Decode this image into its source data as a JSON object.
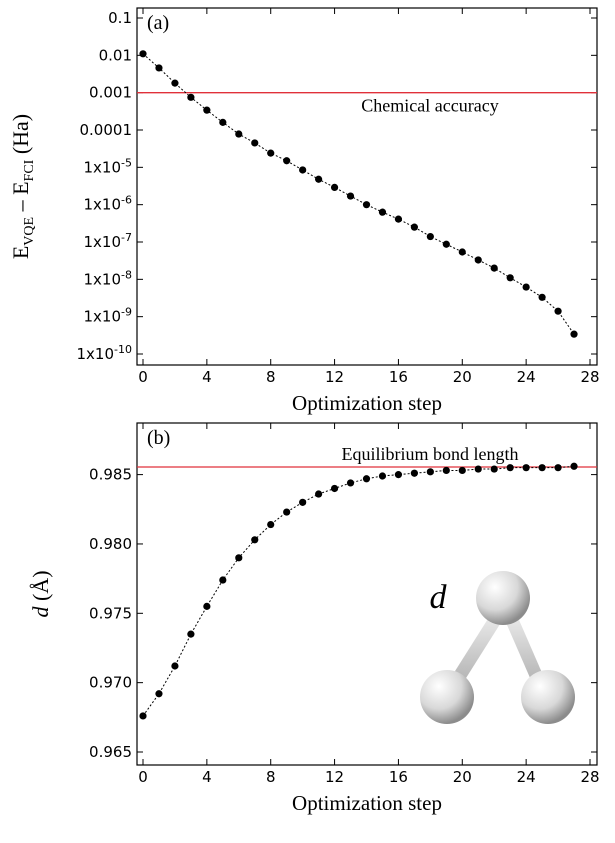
{
  "chart_data": [
    {
      "type": "scatter",
      "panel_label": "(a)",
      "x_label": "Optimization step",
      "y_label": [
        "E",
        "VQE",
        " – E",
        "FCI",
        " (Ha)"
      ],
      "y_scale": "log",
      "x": [
        0,
        1,
        2,
        3,
        4,
        5,
        6,
        7,
        8,
        9,
        10,
        11,
        12,
        13,
        14,
        15,
        16,
        17,
        18,
        19,
        20,
        21,
        22,
        23,
        24,
        25,
        26,
        27
      ],
      "series": [
        {
          "color": "#000000",
          "values": [
            0.011,
            0.0046,
            0.0018,
            0.00075,
            0.00034,
            0.00016,
            7.8e-05,
            4.5e-05,
            2.4e-05,
            1.5e-05,
            8.5e-06,
            4.8e-06,
            2.9e-06,
            1.7e-06,
            1e-06,
            6.3e-07,
            4.1e-07,
            2.5e-07,
            1.4e-07,
            8.7e-08,
            5.4e-08,
            3.3e-08,
            2e-08,
            1.1e-08,
            6.2e-09,
            3.3e-09,
            1.4e-09,
            3.4e-10
          ]
        }
      ],
      "reference": {
        "value": 0.001,
        "label": "Chemical accuracy",
        "color": "#e0303a"
      },
      "xlim": [
        0,
        28
      ],
      "xticks": [
        0,
        4,
        8,
        12,
        16,
        20,
        24,
        28
      ],
      "ylim": [
        1e-10,
        0.1
      ],
      "yticks": [
        0.1,
        0.01,
        0.001,
        0.0001,
        {
          "value": 1e-05,
          "label": "1x10-5"
        },
        {
          "value": 1e-06,
          "label": "1x10-6"
        },
        {
          "value": 1e-07,
          "label": "1x10-7"
        },
        {
          "value": 1e-08,
          "label": "1x10-8"
        },
        {
          "value": 1e-09,
          "label": "1x10-9"
        },
        {
          "value": 1e-10,
          "label": "1x10-10"
        }
      ]
    },
    {
      "type": "scatter",
      "panel_label": "(b)",
      "x_label": "Optimization step",
      "y_label": [
        "d",
        " (Å)"
      ],
      "x": [
        0,
        1,
        2,
        3,
        4,
        5,
        6,
        7,
        8,
        9,
        10,
        11,
        12,
        13,
        14,
        15,
        16,
        17,
        18,
        19,
        20,
        21,
        22,
        23,
        24,
        25,
        26,
        27
      ],
      "series": [
        {
          "color": "#000000",
          "values": [
            0.9676,
            0.9692,
            0.9712,
            0.9735,
            0.9755,
            0.9774,
            0.979,
            0.9803,
            0.9814,
            0.9823,
            0.983,
            0.9836,
            0.984,
            0.9844,
            0.9847,
            0.9849,
            0.985,
            0.9851,
            0.9852,
            0.9853,
            0.9853,
            0.9854,
            0.9854,
            0.9855,
            0.9855,
            0.9855,
            0.9855,
            0.9856
          ]
        }
      ],
      "reference": {
        "value": 0.98555,
        "label": "Equilibrium bond length",
        "color": "#e0303a"
      },
      "inset_label": "d",
      "xlim": [
        0,
        28
      ],
      "xticks": [
        0,
        4,
        8,
        12,
        16,
        20,
        24,
        28
      ],
      "ylim": [
        0.965,
        0.988
      ],
      "yticks": [
        {
          "value": 0.965,
          "label": "0.965"
        },
        {
          "value": 0.97,
          "label": "0.970"
        },
        {
          "value": 0.975,
          "label": "0.975"
        },
        {
          "value": 0.98,
          "label": "0.980"
        },
        {
          "value": 0.985,
          "label": "0.985"
        }
      ]
    }
  ]
}
